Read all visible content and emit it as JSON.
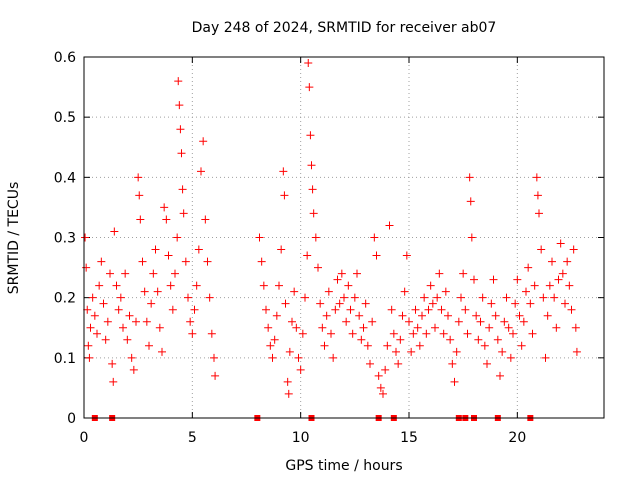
{
  "colors": {
    "series": "#ff0000",
    "grid": "#a0a0a0",
    "frame": "#000000",
    "background": "#ffffff"
  },
  "chart_data": {
    "type": "scatter",
    "title": "Day 248 of 2024, SRMTID for receiver ab07",
    "xlabel": "GPS time / hours",
    "ylabel": "SRMTID / TECUs",
    "xlim": [
      0,
      24
    ],
    "ylim": [
      0,
      0.6
    ],
    "grid": true,
    "marker": "plus",
    "x_ticks": [
      {
        "value": 0,
        "label": "0"
      },
      {
        "value": 5,
        "label": "5"
      },
      {
        "value": 10,
        "label": "10"
      },
      {
        "value": 15,
        "label": "15"
      },
      {
        "value": 20,
        "label": "20"
      }
    ],
    "y_ticks": [
      {
        "value": 0,
        "label": "0"
      },
      {
        "value": 0.1,
        "label": "0.1"
      },
      {
        "value": 0.2,
        "label": "0.2"
      },
      {
        "value": 0.3,
        "label": "0.3"
      },
      {
        "value": 0.4,
        "label": "0.4"
      },
      {
        "value": 0.5,
        "label": "0.5"
      },
      {
        "value": 0.6,
        "label": "0.6"
      }
    ],
    "series": [
      {
        "name": "SRMTID",
        "points": [
          {
            "x": 0.05,
            "y": 0.3
          },
          {
            "x": 0.1,
            "y": 0.25
          },
          {
            "x": 0.15,
            "y": 0.18
          },
          {
            "x": 0.2,
            "y": 0.12
          },
          {
            "x": 0.25,
            "y": 0.1
          },
          {
            "x": 0.3,
            "y": 0.15
          },
          {
            "x": 0.4,
            "y": 0.2
          },
          {
            "x": 0.5,
            "y": 0.17
          },
          {
            "x": 0.6,
            "y": 0.14
          },
          {
            "x": 0.7,
            "y": 0.22
          },
          {
            "x": 0.8,
            "y": 0.26
          },
          {
            "x": 0.9,
            "y": 0.19
          },
          {
            "x": 1.0,
            "y": 0.13
          },
          {
            "x": 1.1,
            "y": 0.16
          },
          {
            "x": 1.2,
            "y": 0.24
          },
          {
            "x": 1.3,
            "y": 0.09
          },
          {
            "x": 1.35,
            "y": 0.06
          },
          {
            "x": 1.4,
            "y": 0.31
          },
          {
            "x": 1.5,
            "y": 0.22
          },
          {
            "x": 1.6,
            "y": 0.18
          },
          {
            "x": 1.7,
            "y": 0.2
          },
          {
            "x": 1.8,
            "y": 0.15
          },
          {
            "x": 1.9,
            "y": 0.24
          },
          {
            "x": 2.0,
            "y": 0.13
          },
          {
            "x": 2.1,
            "y": 0.17
          },
          {
            "x": 2.2,
            "y": 0.1
          },
          {
            "x": 2.3,
            "y": 0.08
          },
          {
            "x": 2.4,
            "y": 0.16
          },
          {
            "x": 2.5,
            "y": 0.4
          },
          {
            "x": 2.55,
            "y": 0.37
          },
          {
            "x": 2.6,
            "y": 0.33
          },
          {
            "x": 2.7,
            "y": 0.26
          },
          {
            "x": 2.8,
            "y": 0.21
          },
          {
            "x": 2.9,
            "y": 0.16
          },
          {
            "x": 3.0,
            "y": 0.12
          },
          {
            "x": 3.1,
            "y": 0.19
          },
          {
            "x": 3.2,
            "y": 0.24
          },
          {
            "x": 3.3,
            "y": 0.28
          },
          {
            "x": 3.4,
            "y": 0.21
          },
          {
            "x": 3.5,
            "y": 0.15
          },
          {
            "x": 3.6,
            "y": 0.11
          },
          {
            "x": 3.7,
            "y": 0.35
          },
          {
            "x": 3.8,
            "y": 0.33
          },
          {
            "x": 3.9,
            "y": 0.27
          },
          {
            "x": 4.0,
            "y": 0.22
          },
          {
            "x": 4.1,
            "y": 0.18
          },
          {
            "x": 4.2,
            "y": 0.24
          },
          {
            "x": 4.3,
            "y": 0.3
          },
          {
            "x": 4.35,
            "y": 0.56
          },
          {
            "x": 4.4,
            "y": 0.52
          },
          {
            "x": 4.45,
            "y": 0.48
          },
          {
            "x": 4.5,
            "y": 0.44
          },
          {
            "x": 4.55,
            "y": 0.38
          },
          {
            "x": 4.6,
            "y": 0.34
          },
          {
            "x": 4.7,
            "y": 0.26
          },
          {
            "x": 4.8,
            "y": 0.2
          },
          {
            "x": 4.9,
            "y": 0.16
          },
          {
            "x": 5.0,
            "y": 0.14
          },
          {
            "x": 5.1,
            "y": 0.18
          },
          {
            "x": 5.2,
            "y": 0.22
          },
          {
            "x": 5.3,
            "y": 0.28
          },
          {
            "x": 5.4,
            "y": 0.41
          },
          {
            "x": 5.5,
            "y": 0.46
          },
          {
            "x": 5.6,
            "y": 0.33
          },
          {
            "x": 5.7,
            "y": 0.26
          },
          {
            "x": 5.8,
            "y": 0.2
          },
          {
            "x": 5.9,
            "y": 0.14
          },
          {
            "x": 6.0,
            "y": 0.1
          },
          {
            "x": 6.05,
            "y": 0.07
          },
          {
            "x": 8.1,
            "y": 0.3
          },
          {
            "x": 8.2,
            "y": 0.26
          },
          {
            "x": 8.3,
            "y": 0.22
          },
          {
            "x": 8.4,
            "y": 0.18
          },
          {
            "x": 8.5,
            "y": 0.15
          },
          {
            "x": 8.6,
            "y": 0.12
          },
          {
            "x": 8.7,
            "y": 0.1
          },
          {
            "x": 8.8,
            "y": 0.13
          },
          {
            "x": 8.9,
            "y": 0.17
          },
          {
            "x": 9.0,
            "y": 0.22
          },
          {
            "x": 9.1,
            "y": 0.28
          },
          {
            "x": 9.2,
            "y": 0.41
          },
          {
            "x": 9.25,
            "y": 0.37
          },
          {
            "x": 9.3,
            "y": 0.19
          },
          {
            "x": 9.4,
            "y": 0.06
          },
          {
            "x": 9.45,
            "y": 0.04
          },
          {
            "x": 9.5,
            "y": 0.11
          },
          {
            "x": 9.6,
            "y": 0.16
          },
          {
            "x": 9.7,
            "y": 0.21
          },
          {
            "x": 9.8,
            "y": 0.15
          },
          {
            "x": 9.9,
            "y": 0.1
          },
          {
            "x": 10.0,
            "y": 0.08
          },
          {
            "x": 10.1,
            "y": 0.14
          },
          {
            "x": 10.2,
            "y": 0.2
          },
          {
            "x": 10.3,
            "y": 0.27
          },
          {
            "x": 10.35,
            "y": 0.59
          },
          {
            "x": 10.4,
            "y": 0.55
          },
          {
            "x": 10.45,
            "y": 0.47
          },
          {
            "x": 10.5,
            "y": 0.42
          },
          {
            "x": 10.55,
            "y": 0.38
          },
          {
            "x": 10.6,
            "y": 0.34
          },
          {
            "x": 10.7,
            "y": 0.3
          },
          {
            "x": 10.8,
            "y": 0.25
          },
          {
            "x": 10.9,
            "y": 0.19
          },
          {
            "x": 11.0,
            "y": 0.15
          },
          {
            "x": 11.1,
            "y": 0.12
          },
          {
            "x": 11.2,
            "y": 0.17
          },
          {
            "x": 11.3,
            "y": 0.21
          },
          {
            "x": 11.4,
            "y": 0.14
          },
          {
            "x": 11.5,
            "y": 0.1
          },
          {
            "x": 11.6,
            "y": 0.18
          },
          {
            "x": 11.7,
            "y": 0.23
          },
          {
            "x": 11.8,
            "y": 0.19
          },
          {
            "x": 11.9,
            "y": 0.24
          },
          {
            "x": 12.0,
            "y": 0.2
          },
          {
            "x": 12.1,
            "y": 0.16
          },
          {
            "x": 12.2,
            "y": 0.22
          },
          {
            "x": 12.3,
            "y": 0.18
          },
          {
            "x": 12.4,
            "y": 0.14
          },
          {
            "x": 12.5,
            "y": 0.2
          },
          {
            "x": 12.6,
            "y": 0.24
          },
          {
            "x": 12.7,
            "y": 0.17
          },
          {
            "x": 12.8,
            "y": 0.13
          },
          {
            "x": 12.9,
            "y": 0.15
          },
          {
            "x": 13.0,
            "y": 0.19
          },
          {
            "x": 13.1,
            "y": 0.12
          },
          {
            "x": 13.2,
            "y": 0.09
          },
          {
            "x": 13.3,
            "y": 0.16
          },
          {
            "x": 13.4,
            "y": 0.3
          },
          {
            "x": 13.5,
            "y": 0.27
          },
          {
            "x": 13.6,
            "y": 0.07
          },
          {
            "x": 13.7,
            "y": 0.05
          },
          {
            "x": 13.8,
            "y": 0.04
          },
          {
            "x": 13.9,
            "y": 0.08
          },
          {
            "x": 14.0,
            "y": 0.12
          },
          {
            "x": 14.1,
            "y": 0.32
          },
          {
            "x": 14.2,
            "y": 0.18
          },
          {
            "x": 14.3,
            "y": 0.14
          },
          {
            "x": 14.4,
            "y": 0.11
          },
          {
            "x": 14.5,
            "y": 0.09
          },
          {
            "x": 14.6,
            "y": 0.13
          },
          {
            "x": 14.7,
            "y": 0.17
          },
          {
            "x": 14.8,
            "y": 0.21
          },
          {
            "x": 14.9,
            "y": 0.27
          },
          {
            "x": 15.0,
            "y": 0.16
          },
          {
            "x": 15.1,
            "y": 0.11
          },
          {
            "x": 15.2,
            "y": 0.14
          },
          {
            "x": 15.3,
            "y": 0.18
          },
          {
            "x": 15.4,
            "y": 0.15
          },
          {
            "x": 15.5,
            "y": 0.12
          },
          {
            "x": 15.6,
            "y": 0.17
          },
          {
            "x": 15.7,
            "y": 0.2
          },
          {
            "x": 15.8,
            "y": 0.14
          },
          {
            "x": 15.9,
            "y": 0.18
          },
          {
            "x": 16.0,
            "y": 0.22
          },
          {
            "x": 16.1,
            "y": 0.19
          },
          {
            "x": 16.2,
            "y": 0.15
          },
          {
            "x": 16.3,
            "y": 0.2
          },
          {
            "x": 16.4,
            "y": 0.24
          },
          {
            "x": 16.5,
            "y": 0.18
          },
          {
            "x": 16.6,
            "y": 0.14
          },
          {
            "x": 16.7,
            "y": 0.21
          },
          {
            "x": 16.8,
            "y": 0.17
          },
          {
            "x": 16.9,
            "y": 0.13
          },
          {
            "x": 17.0,
            "y": 0.09
          },
          {
            "x": 17.1,
            "y": 0.06
          },
          {
            "x": 17.2,
            "y": 0.11
          },
          {
            "x": 17.3,
            "y": 0.16
          },
          {
            "x": 17.4,
            "y": 0.2
          },
          {
            "x": 17.5,
            "y": 0.24
          },
          {
            "x": 17.6,
            "y": 0.18
          },
          {
            "x": 17.7,
            "y": 0.14
          },
          {
            "x": 17.8,
            "y": 0.4
          },
          {
            "x": 17.85,
            "y": 0.36
          },
          {
            "x": 17.9,
            "y": 0.3
          },
          {
            "x": 18.0,
            "y": 0.23
          },
          {
            "x": 18.1,
            "y": 0.17
          },
          {
            "x": 18.2,
            "y": 0.13
          },
          {
            "x": 18.3,
            "y": 0.16
          },
          {
            "x": 18.4,
            "y": 0.2
          },
          {
            "x": 18.5,
            "y": 0.12
          },
          {
            "x": 18.6,
            "y": 0.09
          },
          {
            "x": 18.7,
            "y": 0.15
          },
          {
            "x": 18.8,
            "y": 0.19
          },
          {
            "x": 18.9,
            "y": 0.23
          },
          {
            "x": 19.0,
            "y": 0.17
          },
          {
            "x": 19.1,
            "y": 0.13
          },
          {
            "x": 19.2,
            "y": 0.07
          },
          {
            "x": 19.3,
            "y": 0.11
          },
          {
            "x": 19.4,
            "y": 0.16
          },
          {
            "x": 19.5,
            "y": 0.2
          },
          {
            "x": 19.6,
            "y": 0.15
          },
          {
            "x": 19.7,
            "y": 0.1
          },
          {
            "x": 19.8,
            "y": 0.14
          },
          {
            "x": 19.9,
            "y": 0.19
          },
          {
            "x": 20.0,
            "y": 0.23
          },
          {
            "x": 20.1,
            "y": 0.17
          },
          {
            "x": 20.2,
            "y": 0.12
          },
          {
            "x": 20.3,
            "y": 0.16
          },
          {
            "x": 20.4,
            "y": 0.21
          },
          {
            "x": 20.5,
            "y": 0.25
          },
          {
            "x": 20.6,
            "y": 0.19
          },
          {
            "x": 20.7,
            "y": 0.14
          },
          {
            "x": 20.8,
            "y": 0.22
          },
          {
            "x": 20.9,
            "y": 0.4
          },
          {
            "x": 20.95,
            "y": 0.37
          },
          {
            "x": 21.0,
            "y": 0.34
          },
          {
            "x": 21.1,
            "y": 0.28
          },
          {
            "x": 21.2,
            "y": 0.2
          },
          {
            "x": 21.3,
            "y": 0.1
          },
          {
            "x": 21.4,
            "y": 0.17
          },
          {
            "x": 21.5,
            "y": 0.22
          },
          {
            "x": 21.6,
            "y": 0.26
          },
          {
            "x": 21.7,
            "y": 0.2
          },
          {
            "x": 21.8,
            "y": 0.15
          },
          {
            "x": 21.9,
            "y": 0.23
          },
          {
            "x": 22.0,
            "y": 0.29
          },
          {
            "x": 22.1,
            "y": 0.24
          },
          {
            "x": 22.2,
            "y": 0.19
          },
          {
            "x": 22.3,
            "y": 0.26
          },
          {
            "x": 22.4,
            "y": 0.22
          },
          {
            "x": 22.5,
            "y": 0.18
          },
          {
            "x": 22.6,
            "y": 0.28
          },
          {
            "x": 22.7,
            "y": 0.15
          },
          {
            "x": 22.75,
            "y": 0.11
          }
        ]
      },
      {
        "name": "zero markers",
        "marker": "square",
        "points": [
          {
            "x": 0.5,
            "y": 0
          },
          {
            "x": 1.3,
            "y": 0
          },
          {
            "x": 8.0,
            "y": 0
          },
          {
            "x": 10.5,
            "y": 0
          },
          {
            "x": 13.6,
            "y": 0
          },
          {
            "x": 14.3,
            "y": 0
          },
          {
            "x": 17.3,
            "y": 0
          },
          {
            "x": 17.6,
            "y": 0
          },
          {
            "x": 18.0,
            "y": 0
          },
          {
            "x": 19.1,
            "y": 0
          },
          {
            "x": 20.6,
            "y": 0
          }
        ]
      }
    ]
  }
}
